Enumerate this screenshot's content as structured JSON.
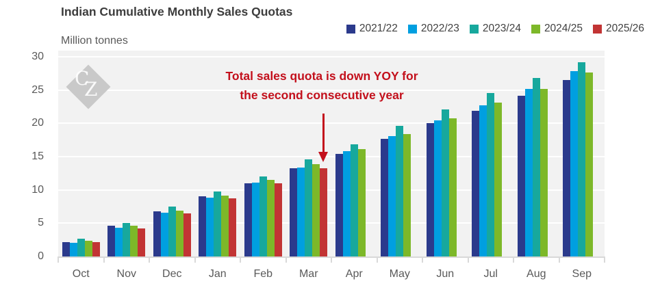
{
  "header": {
    "title": "Indian Cumulative Monthly Sales Quotas",
    "unit_label": "Million tonnes"
  },
  "legend": [
    {
      "label": "2021/22",
      "color": "#2b3a8c"
    },
    {
      "label": "2022/23",
      "color": "#009fe0"
    },
    {
      "label": "2023/24",
      "color": "#17a89d"
    },
    {
      "label": "2024/25",
      "color": "#7db829"
    },
    {
      "label": "2025/26",
      "color": "#c23434"
    }
  ],
  "annotation": {
    "line1": "Total sales quota is down YOY for",
    "line2": "the second consecutive year",
    "color": "#c3101c"
  },
  "watermark": {
    "letter_c": "C",
    "letter_z": "Z"
  },
  "chart_data": {
    "type": "bar",
    "title": "Indian Cumulative Monthly Sales Quotas",
    "xlabel": "",
    "ylabel": "Million tonnes",
    "ylim": [
      0,
      30
    ],
    "yticks": [
      0,
      5,
      10,
      15,
      20,
      25,
      30
    ],
    "grid": true,
    "legend_position": "top-right",
    "plot_background": "#f2f2f2",
    "gridline_color": "#ffffff",
    "axis_color": "#d9d9d9",
    "categories": [
      "Oct",
      "Nov",
      "Dec",
      "Jan",
      "Feb",
      "Mar",
      "Apr",
      "May",
      "Jun",
      "Jul",
      "Aug",
      "Sep"
    ],
    "series": [
      {
        "name": "2021/22",
        "color": "#2b3a8c",
        "values": [
          2.2,
          4.6,
          6.8,
          9.0,
          11.0,
          13.3,
          15.4,
          17.7,
          20.0,
          21.9,
          24.1,
          26.5
        ]
      },
      {
        "name": "2022/23",
        "color": "#009fe0",
        "values": [
          2.1,
          4.35,
          6.6,
          8.85,
          11.1,
          13.35,
          15.8,
          18.1,
          20.4,
          22.7,
          25.2,
          27.8
        ]
      },
      {
        "name": "2023/24",
        "color": "#17a89d",
        "values": [
          2.7,
          5.0,
          7.45,
          9.8,
          12.0,
          14.55,
          16.9,
          19.6,
          22.1,
          24.6,
          26.8,
          29.2
        ]
      },
      {
        "name": "2024/25",
        "color": "#7db829",
        "values": [
          2.35,
          4.6,
          6.85,
          9.15,
          11.5,
          13.9,
          16.1,
          18.4,
          20.8,
          23.1,
          25.2,
          27.6
        ]
      },
      {
        "name": "2025/26",
        "color": "#c23434",
        "values": [
          2.15,
          4.2,
          6.45,
          8.7,
          11.0,
          13.3,
          null,
          null,
          null,
          null,
          null,
          null
        ]
      }
    ]
  }
}
